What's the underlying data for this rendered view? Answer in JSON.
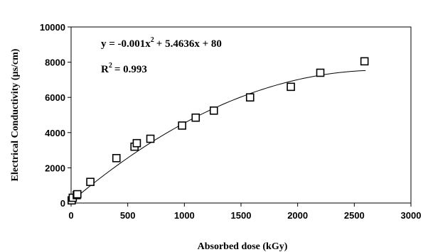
{
  "chart_data": {
    "type": "scatter",
    "title": "",
    "xlabel": "Absorbed dose (kGy)",
    "ylabel": "Electrical Conductivity (µs/cm)",
    "xlim": [
      0,
      3000
    ],
    "ylim": [
      0,
      10000
    ],
    "xticks": [
      "0",
      "500",
      "1000",
      "1500",
      "2000",
      "2500",
      "3000"
    ],
    "yticks": [
      "0",
      "2000",
      "4000",
      "6000",
      "8000",
      "10000"
    ],
    "grid": false,
    "legend": "none",
    "marker": "open-square",
    "series": [
      {
        "points": [
          {
            "x": 5,
            "y": 150
          },
          {
            "x": 15,
            "y": 300
          },
          {
            "x": 50,
            "y": 450
          },
          {
            "x": 55,
            "y": 500
          },
          {
            "x": 170,
            "y": 1200
          },
          {
            "x": 400,
            "y": 2550
          },
          {
            "x": 560,
            "y": 3200
          },
          {
            "x": 580,
            "y": 3400
          },
          {
            "x": 700,
            "y": 3650
          },
          {
            "x": 980,
            "y": 4400
          },
          {
            "x": 1100,
            "y": 4850
          },
          {
            "x": 1260,
            "y": 5250
          },
          {
            "x": 1580,
            "y": 6000
          },
          {
            "x": 1940,
            "y": 6600
          },
          {
            "x": 2200,
            "y": 7400
          },
          {
            "x": 2590,
            "y": 8050
          }
        ]
      }
    ],
    "trendline": {
      "type": "polynomial",
      "coefficients": [
        -0.001,
        5.4636,
        80
      ],
      "xrange": [
        0,
        2600
      ],
      "equation_prefix": "y = -0.001x",
      "equation_exp": "2",
      "equation_suffix": "+ 5.4636x + 80",
      "r2_prefix": "R",
      "r2_exp": "2",
      "r2_suffix": "= 0.993"
    }
  }
}
